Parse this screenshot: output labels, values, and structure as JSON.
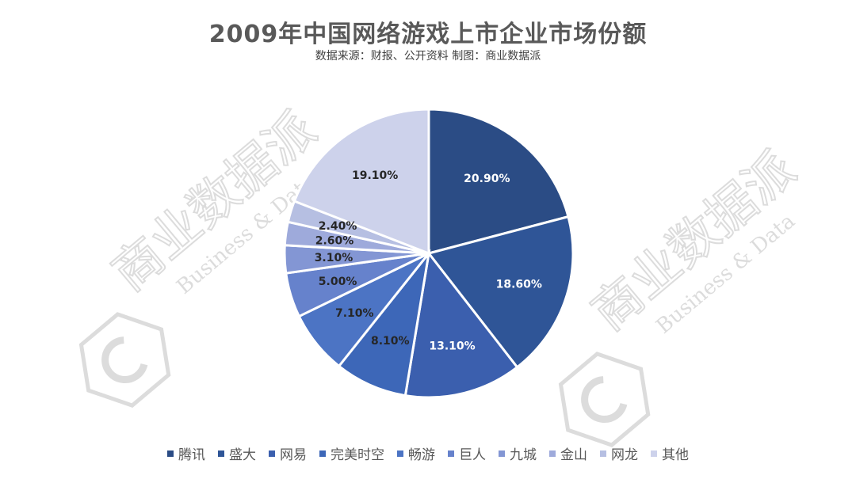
{
  "chart_data": {
    "type": "pie",
    "title": "2009年中国网络游戏上市企业市场份额",
    "subtitle": "数据来源：财报、公开资料  制图：商业数据派",
    "unit": "%",
    "series": [
      {
        "name": "腾讯",
        "value": 20.9,
        "label": "20.90%",
        "color": "#2b4c85"
      },
      {
        "name": "盛大",
        "value": 18.6,
        "label": "18.60%",
        "color": "#2f5597"
      },
      {
        "name": "网易",
        "value": 13.1,
        "label": "13.10%",
        "color": "#3b5fae"
      },
      {
        "name": "完美时空",
        "value": 8.1,
        "label": "8.10%",
        "color": "#3d67b8"
      },
      {
        "name": "畅游",
        "value": 7.1,
        "label": "7.10%",
        "color": "#4c74c4"
      },
      {
        "name": "巨人",
        "value": 5.0,
        "label": "5.00%",
        "color": "#6682cc"
      },
      {
        "name": "九城",
        "value": 3.1,
        "label": "3.10%",
        "color": "#8396d4"
      },
      {
        "name": "金山",
        "value": 2.6,
        "label": "2.60%",
        "color": "#9eaadb"
      },
      {
        "name": "网龙",
        "value": 2.4,
        "label": "2.40%",
        "color": "#b6bfe2"
      },
      {
        "name": "其他",
        "value": 19.1,
        "label": "19.10%",
        "color": "#cdd2eb"
      }
    ],
    "label_colors": {
      "dark": "#ffffff",
      "light": "#262626"
    },
    "legend_position": "bottom"
  },
  "watermark": {
    "text_cn": "商业数据派",
    "text_en": "Business & Data",
    "color": "#d9d9d9"
  }
}
